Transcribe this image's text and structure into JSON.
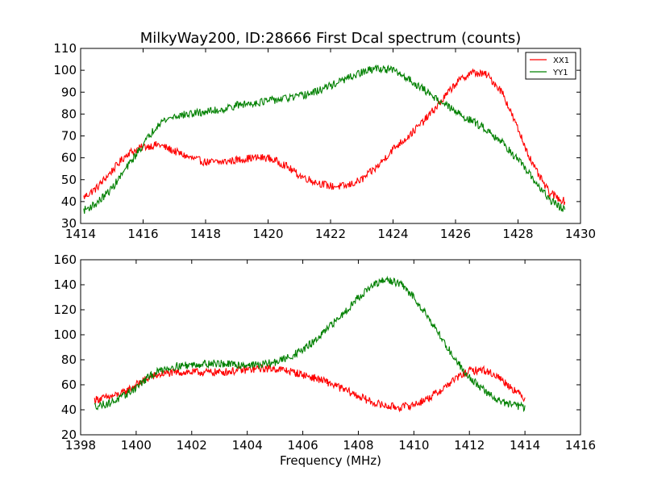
{
  "chart_data": [
    {
      "type": "line",
      "title": "MilkyWay200, ID:28666 First Dcal spectrum (counts)",
      "xlabel": "",
      "ylabel": "",
      "xlim": [
        1414,
        1430
      ],
      "ylim": [
        30,
        110
      ],
      "xticks": [
        1414,
        1416,
        1418,
        1420,
        1422,
        1424,
        1426,
        1428,
        1430
      ],
      "yticks": [
        30,
        40,
        50,
        60,
        70,
        80,
        90,
        100,
        110
      ],
      "legend": "top-right",
      "series": [
        {
          "name": "XX1",
          "color": "#ff0000",
          "x": [
            1414.1,
            1414.5,
            1415.0,
            1415.5,
            1416.0,
            1416.5,
            1417.0,
            1417.5,
            1418.0,
            1418.5,
            1419.0,
            1419.5,
            1420.0,
            1420.5,
            1421.0,
            1421.5,
            1422.0,
            1422.5,
            1423.0,
            1423.5,
            1424.0,
            1424.5,
            1425.0,
            1425.5,
            1426.0,
            1426.5,
            1427.0,
            1427.5,
            1428.0,
            1428.5,
            1429.0,
            1429.5
          ],
          "y": [
            42,
            46,
            54,
            62,
            65,
            66,
            63,
            60,
            58,
            58,
            59,
            60,
            60,
            57,
            52,
            49,
            47,
            47,
            50,
            56,
            64,
            70,
            77,
            85,
            94,
            99,
            98,
            90,
            73,
            56,
            44,
            40
          ]
        },
        {
          "name": "YY1",
          "color": "#008000",
          "x": [
            1414.1,
            1414.5,
            1415.0,
            1415.5,
            1416.0,
            1416.5,
            1417.0,
            1417.5,
            1418.0,
            1418.5,
            1419.0,
            1419.5,
            1420.0,
            1420.5,
            1421.0,
            1421.5,
            1422.0,
            1422.5,
            1423.0,
            1423.5,
            1424.0,
            1424.5,
            1425.0,
            1425.5,
            1426.0,
            1426.5,
            1427.0,
            1427.5,
            1428.0,
            1428.5,
            1429.0,
            1429.5
          ],
          "y": [
            36,
            39,
            46,
            56,
            66,
            76,
            79,
            80,
            81,
            82,
            84,
            85,
            86,
            87,
            88,
            90,
            93,
            96,
            99,
            101,
            100,
            96,
            91,
            86,
            81,
            77,
            73,
            67,
            59,
            50,
            41,
            36
          ]
        }
      ]
    },
    {
      "type": "line",
      "title": "",
      "xlabel": "Frequency (MHz)",
      "ylabel": "",
      "xlim": [
        1398,
        1416
      ],
      "ylim": [
        20,
        160
      ],
      "xticks": [
        1398,
        1400,
        1402,
        1404,
        1406,
        1408,
        1410,
        1412,
        1414,
        1416
      ],
      "yticks": [
        20,
        40,
        60,
        80,
        100,
        120,
        140,
        160
      ],
      "series": [
        {
          "name": "XX1",
          "color": "#ff0000",
          "x": [
            1398.5,
            1399.0,
            1399.5,
            1400.0,
            1400.5,
            1401.0,
            1401.5,
            1402.0,
            1402.5,
            1403.0,
            1403.5,
            1404.0,
            1404.5,
            1405.0,
            1405.5,
            1406.0,
            1406.5,
            1407.0,
            1407.5,
            1408.0,
            1408.5,
            1409.0,
            1409.5,
            1410.0,
            1410.5,
            1411.0,
            1411.5,
            1412.0,
            1412.5,
            1413.0,
            1413.5,
            1414.0
          ],
          "y": [
            48,
            50,
            53,
            60,
            66,
            69,
            70,
            70,
            70,
            70,
            71,
            72,
            73,
            73,
            71,
            68,
            65,
            61,
            56,
            51,
            46,
            43,
            42,
            44,
            49,
            56,
            65,
            71,
            72,
            67,
            58,
            49
          ]
        },
        {
          "name": "YY1",
          "color": "#008000",
          "x": [
            1398.5,
            1399.0,
            1399.5,
            1400.0,
            1400.5,
            1401.0,
            1401.5,
            1402.0,
            1402.5,
            1403.0,
            1403.5,
            1404.0,
            1404.5,
            1405.0,
            1405.5,
            1406.0,
            1406.5,
            1407.0,
            1407.5,
            1408.0,
            1408.5,
            1409.0,
            1409.5,
            1410.0,
            1410.5,
            1411.0,
            1411.5,
            1412.0,
            1412.5,
            1413.0,
            1413.5,
            1414.0
          ],
          "y": [
            43,
            45,
            50,
            58,
            67,
            73,
            75,
            76,
            77,
            77,
            76,
            76,
            76,
            78,
            82,
            88,
            96,
            107,
            118,
            130,
            139,
            144,
            141,
            130,
            115,
            97,
            80,
            66,
            56,
            48,
            44,
            42
          ]
        }
      ]
    }
  ]
}
